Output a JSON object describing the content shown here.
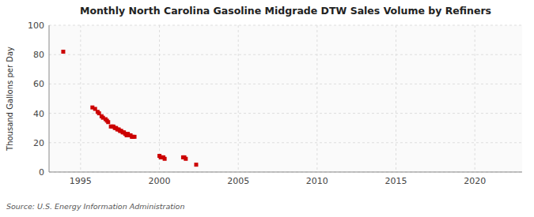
{
  "chart_data": {
    "type": "scatter",
    "title": "Monthly North Carolina Gasoline Midgrade DTW Sales Volume by Refiners",
    "ylabel": "Thousand Gallons per Day",
    "annotations": [
      "Source: U.S. Energy Information Administration"
    ],
    "color": "#cc0000",
    "marker": "square",
    "grid": true,
    "xlim": [
      1993.0,
      2023.0
    ],
    "ylim": [
      0,
      100
    ],
    "xticks": [
      1995,
      2000,
      2005,
      2010,
      2015,
      2020
    ],
    "yticks": [
      0,
      20,
      40,
      60,
      80,
      100
    ],
    "x": [
      1993.9,
      1995.75,
      1995.92,
      1996.08,
      1996.17,
      1996.33,
      1996.42,
      1996.58,
      1996.67,
      1996.75,
      1996.92,
      1997.0,
      1997.08,
      1997.17,
      1997.25,
      1997.33,
      1997.42,
      1997.5,
      1997.58,
      1997.67,
      1997.75,
      1997.83,
      1997.92,
      1998.0,
      1998.08,
      1998.17,
      1998.25,
      1998.33,
      1998.42,
      2000.0,
      2000.08,
      2000.17,
      2000.25,
      2000.33,
      2001.5,
      2001.58,
      2001.67,
      2002.33
    ],
    "values": [
      82,
      44,
      43,
      41,
      40,
      38,
      37,
      36,
      35,
      34,
      31,
      31,
      31,
      30,
      30,
      29,
      29,
      28,
      28,
      27,
      27,
      26,
      25,
      26,
      25,
      25,
      24,
      24,
      24,
      11,
      10,
      10,
      10,
      9,
      10,
      10,
      9,
      5
    ]
  }
}
